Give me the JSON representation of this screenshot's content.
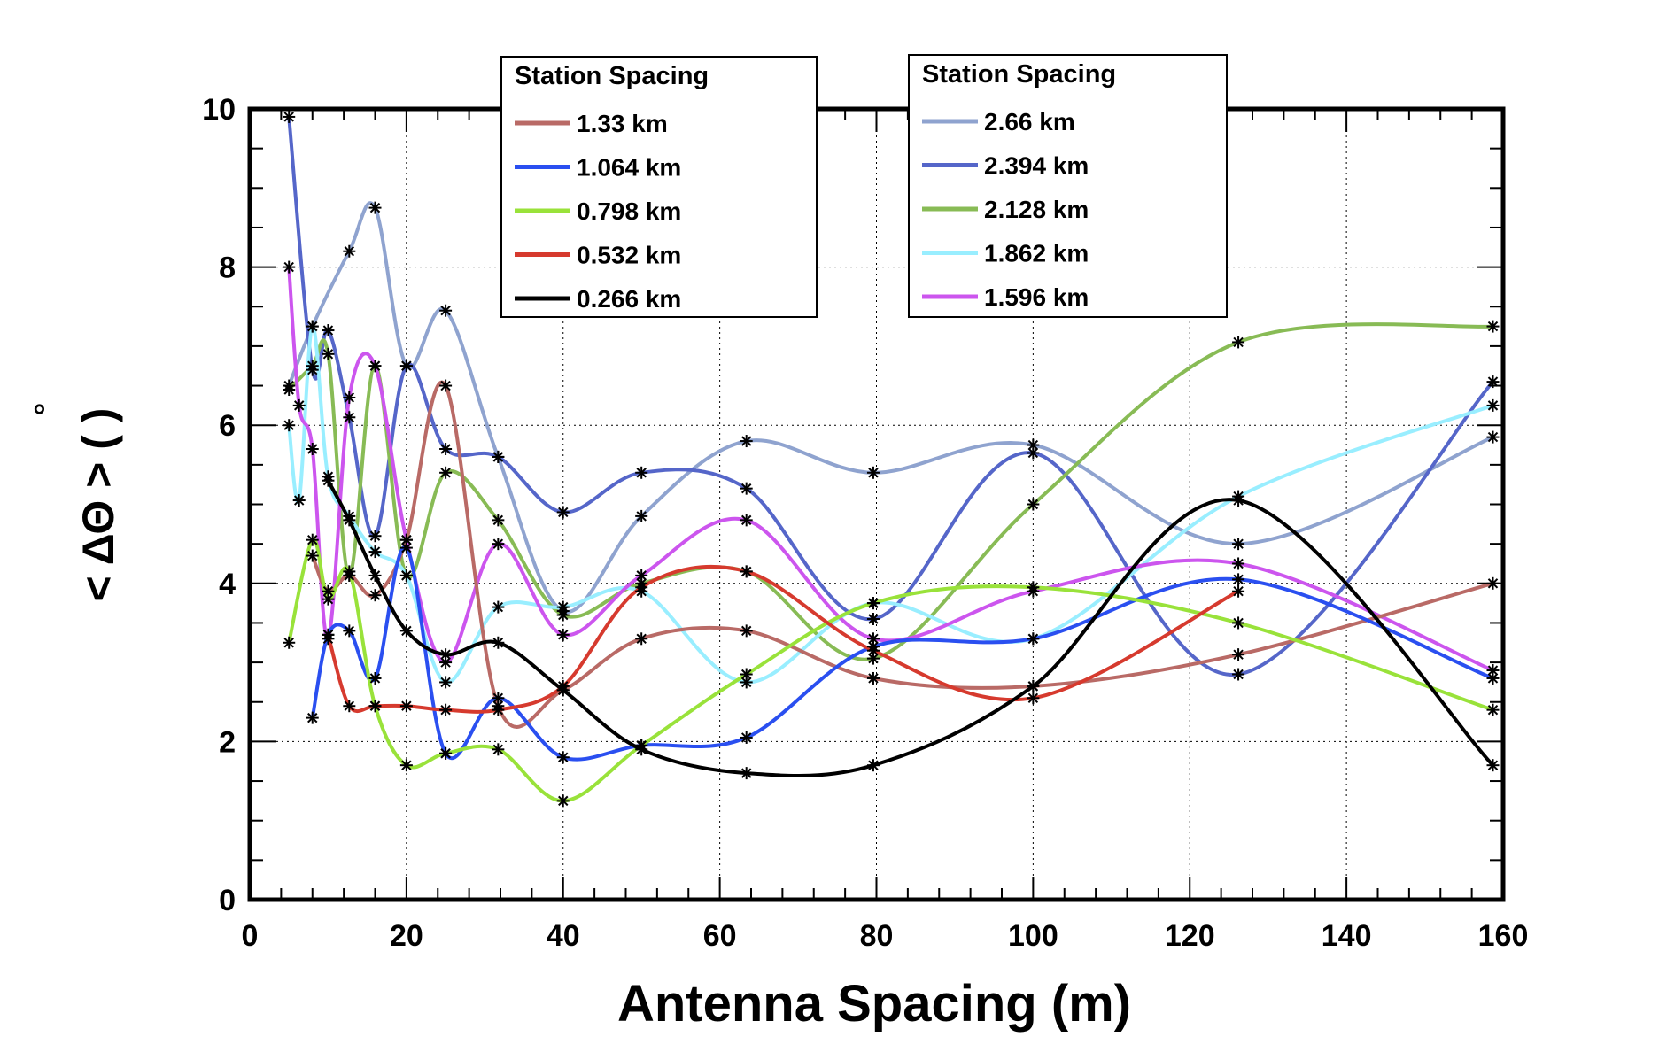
{
  "chart_data": {
    "type": "line",
    "title": "",
    "xlabel": "Antenna Spacing (m)",
    "ylabel": "< ΔΘ > ( )",
    "ylabel_degree": "°",
    "xlim": [
      0,
      160
    ],
    "ylim": [
      0,
      10
    ],
    "xticks": [
      0,
      20,
      40,
      60,
      80,
      100,
      120,
      140,
      160
    ],
    "yticks": [
      0,
      2,
      4,
      6,
      8,
      10
    ],
    "grid": true,
    "legends": [
      {
        "title": "Station Spacing",
        "placement": "top-center",
        "entries": [
          "1.33 km",
          "1.064 km",
          "0.798 km",
          "0.532 km",
          "0.266 km"
        ]
      },
      {
        "title": "Station Spacing",
        "placement": "top-right",
        "entries": [
          "2.66 km",
          "2.394 km",
          "2.128 km",
          "1.862 km",
          "1.596 km"
        ]
      }
    ],
    "series": [
      {
        "name": "2.66 km",
        "color": "#8fa3cf",
        "x": [
          5,
          8,
          12.7,
          16,
          20,
          25,
          31.7,
          40,
          50,
          63.4,
          79.6,
          100,
          126.2,
          158.7
        ],
        "y": [
          6.5,
          7.25,
          8.2,
          8.75,
          6.75,
          7.45,
          5.6,
          3.65,
          4.85,
          5.8,
          5.4,
          5.75,
          4.5,
          5.85
        ]
      },
      {
        "name": "2.394 km",
        "color": "#5566c9",
        "x": [
          5,
          8,
          10,
          12.7,
          16,
          20,
          25,
          31.7,
          40,
          50,
          63.4,
          79.6,
          100,
          126.2,
          158.7
        ],
        "y": [
          9.9,
          6.7,
          7.2,
          6.1,
          4.6,
          6.75,
          5.7,
          5.6,
          4.9,
          5.4,
          5.2,
          3.55,
          5.65,
          2.85,
          6.55
        ]
      },
      {
        "name": "2.128 km",
        "color": "#88bb55",
        "x": [
          5,
          8,
          10,
          12.7,
          16,
          20,
          25,
          31.7,
          40,
          50,
          63.4,
          79.6,
          100,
          126.2,
          158.7
        ],
        "y": [
          6.45,
          6.75,
          6.9,
          4.1,
          6.75,
          4.1,
          5.4,
          4.8,
          3.6,
          4.0,
          4.15,
          3.05,
          5.0,
          7.05,
          7.25
        ]
      },
      {
        "name": "1.862 km",
        "color": "#99eeff",
        "x": [
          5,
          6.3,
          8,
          10,
          12.7,
          16,
          20,
          25,
          31.7,
          40,
          50,
          63.4,
          79.6,
          100,
          126.2,
          158.7
        ],
        "y": [
          6.0,
          5.05,
          7.25,
          5.35,
          4.85,
          4.4,
          4.1,
          2.75,
          3.7,
          3.7,
          3.9,
          2.75,
          3.75,
          3.3,
          5.1,
          6.25
        ]
      },
      {
        "name": "1.596 km",
        "color": "#cc55ee",
        "x": [
          5,
          6.3,
          8,
          10,
          12.7,
          16,
          20,
          25,
          31.7,
          40,
          50,
          63.4,
          79.6,
          100,
          126.2,
          158.7
        ],
        "y": [
          8.0,
          6.25,
          5.7,
          3.3,
          6.35,
          6.75,
          4.55,
          3.0,
          4.5,
          3.35,
          4.1,
          4.8,
          3.3,
          3.9,
          4.25,
          2.9
        ]
      },
      {
        "name": "1.33 km",
        "color": "#b96a66",
        "x": [
          8,
          10,
          12.7,
          16,
          20,
          25,
          31.7,
          40,
          50,
          63.4,
          79.6,
          100,
          126.2,
          158.7
        ],
        "y": [
          4.35,
          3.9,
          4.1,
          3.85,
          4.55,
          6.5,
          2.45,
          2.65,
          3.3,
          3.4,
          2.8,
          2.7,
          3.1,
          4.0
        ]
      },
      {
        "name": "1.064 km",
        "color": "#2a4ff0",
        "x": [
          8,
          10,
          12.7,
          16,
          20,
          25,
          31.7,
          40,
          50,
          63.4,
          79.6,
          100,
          126.2,
          158.7
        ],
        "y": [
          2.3,
          3.35,
          3.4,
          2.8,
          4.45,
          1.85,
          2.55,
          1.8,
          1.95,
          2.05,
          3.2,
          3.3,
          4.05,
          2.8
        ]
      },
      {
        "name": "0.798 km",
        "color": "#99e23a",
        "x": [
          5,
          8,
          10,
          12.7,
          16,
          20,
          25,
          31.7,
          40,
          50,
          63.4,
          79.6,
          100,
          126.2,
          158.7
        ],
        "y": [
          3.25,
          4.55,
          3.8,
          4.15,
          2.45,
          1.7,
          1.85,
          1.9,
          1.25,
          1.95,
          2.85,
          3.75,
          3.95,
          3.5,
          2.4
        ]
      },
      {
        "name": "0.532 km",
        "color": "#d63a2e",
        "x": [
          10,
          12.7,
          16,
          20,
          25,
          31.7,
          40,
          50,
          63.4,
          79.6,
          100,
          126.2
        ],
        "y": [
          3.35,
          2.45,
          2.45,
          2.45,
          2.4,
          2.4,
          2.7,
          3.95,
          4.15,
          3.15,
          2.55,
          3.9
        ]
      },
      {
        "name": "0.266 km",
        "color": "#000000",
        "x": [
          10,
          12.7,
          16,
          20,
          25,
          31.7,
          40,
          50,
          63.4,
          79.6,
          100,
          126.2,
          158.7
        ],
        "y": [
          5.3,
          4.8,
          4.1,
          3.4,
          3.1,
          3.25,
          2.65,
          1.9,
          1.6,
          1.7,
          2.7,
          5.05,
          1.7
        ]
      }
    ]
  }
}
